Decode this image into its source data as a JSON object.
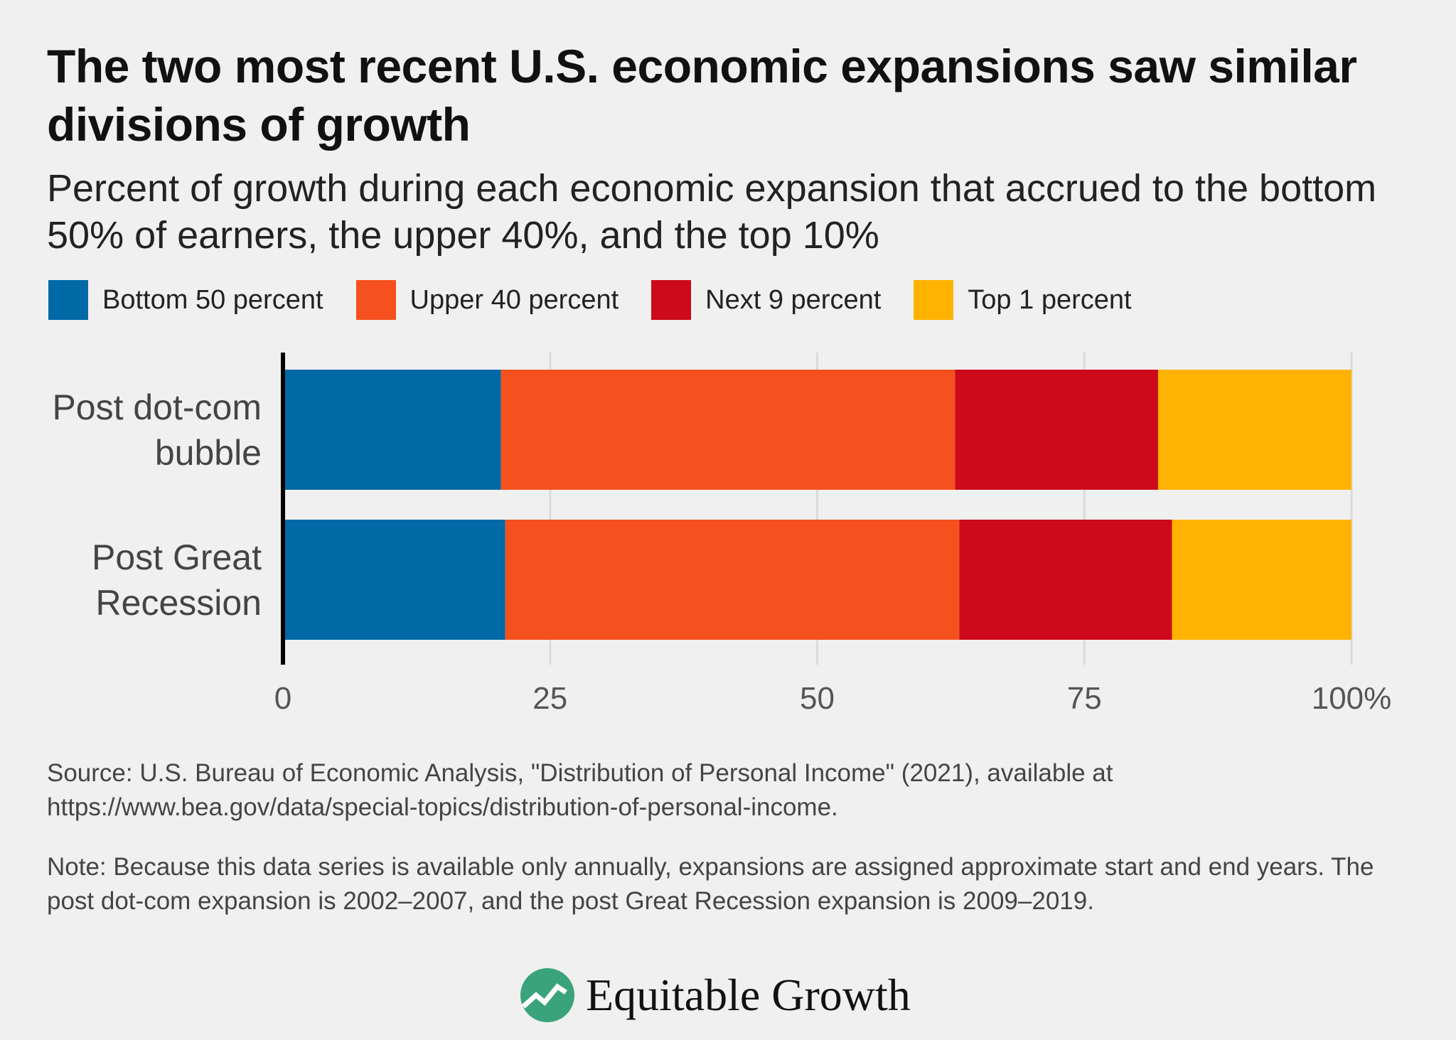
{
  "title": "The two most recent U.S. economic expansions saw similar divisions of growth",
  "subtitle": "Percent of growth during each economic expansion that accrued to the bottom 50% of earners, the upper 40%, and the top 10%",
  "source": "Source: U.S. Bureau of Economic Analysis, \"Distribution of Personal Income\" (2021), available at https://www.bea.gov/data/special-topics/distribution-of-personal-income.",
  "note": "Note: Because this data series is available only annually, expansions are assigned approximate start and end years. The post dot-com expansion is 2002–2007, and the post Great Recession expansion is 2009–2019.",
  "logo_text": "Equitable Growth",
  "chart_data": {
    "type": "bar",
    "orientation": "horizontal",
    "stacked": true,
    "categories": [
      [
        "Post dot-com",
        "bubble"
      ],
      [
        "Post Great",
        "Recession"
      ]
    ],
    "series": [
      {
        "name": "Bottom 50 percent",
        "color": "#0069a6",
        "values": [
          20.4,
          20.8
        ]
      },
      {
        "name": "Upper 40 percent",
        "color": "#f5511f",
        "values": [
          42.5,
          42.5
        ]
      },
      {
        "name": "Next 9 percent",
        "color": "#cc0a1c",
        "values": [
          19.0,
          19.9
        ]
      },
      {
        "name": "Top 1 percent",
        "color": "#ffb300",
        "values": [
          18.1,
          16.8
        ]
      }
    ],
    "xlim": [
      0,
      100
    ],
    "xticks": [
      0,
      25,
      50,
      75,
      100
    ],
    "xtick_labels": [
      "0",
      "25",
      "50",
      "75",
      "100%"
    ],
    "grid": true,
    "legend_position": "top-left"
  }
}
